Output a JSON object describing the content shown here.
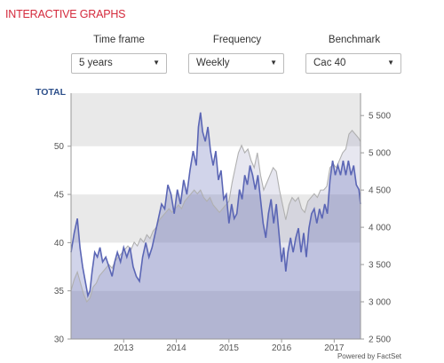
{
  "header": {
    "title": "INTERACTIVE GRAPHS"
  },
  "controls": {
    "timeframe": {
      "label": "Time frame",
      "value": "5 years",
      "arrow_icon": "caret-down-icon"
    },
    "frequency": {
      "label": "Frequency",
      "value": "Weekly",
      "arrow_icon": "caret-down-icon"
    },
    "benchmark": {
      "label": "Benchmark",
      "value": "Cac 40",
      "arrow_icon": "caret-down-icon"
    }
  },
  "chart_data": {
    "type": "area",
    "title": "",
    "ylabel": "TOTAL",
    "y_left": {
      "ticks": [
        30,
        35,
        40,
        45,
        50
      ],
      "range": [
        30,
        55.5
      ]
    },
    "y_right": {
      "ticks": [
        "2 500",
        "3 000",
        "3 500",
        "4 000",
        "4 500",
        "5 000",
        "5 500"
      ],
      "range": [
        2500,
        5800
      ]
    },
    "x_ticks": [
      "2013",
      "2014",
      "2015",
      "2016",
      "2017"
    ],
    "x_range": [
      2012.0,
      2017.5
    ],
    "grid": true,
    "series": [
      {
        "color": "#5b66b5",
        "points": [
          [
            2012.0,
            39.0
          ],
          [
            2012.06,
            41.0
          ],
          [
            2012.12,
            42.5
          ],
          [
            2012.17,
            39.5
          ],
          [
            2012.22,
            37.5
          ],
          [
            2012.27,
            36.0
          ],
          [
            2012.32,
            34.5
          ],
          [
            2012.36,
            35.0
          ],
          [
            2012.4,
            37.0
          ],
          [
            2012.45,
            39.0
          ],
          [
            2012.5,
            38.5
          ],
          [
            2012.55,
            39.5
          ],
          [
            2012.6,
            38.0
          ],
          [
            2012.66,
            38.5
          ],
          [
            2012.72,
            37.5
          ],
          [
            2012.78,
            36.5
          ],
          [
            2012.83,
            38.0
          ],
          [
            2012.88,
            39.0
          ],
          [
            2012.94,
            38.0
          ],
          [
            2013.0,
            39.5
          ],
          [
            2013.06,
            38.5
          ],
          [
            2013.12,
            39.5
          ],
          [
            2013.18,
            37.5
          ],
          [
            2013.24,
            36.5
          ],
          [
            2013.3,
            36.0
          ],
          [
            2013.36,
            38.5
          ],
          [
            2013.42,
            40.0
          ],
          [
            2013.48,
            38.5
          ],
          [
            2013.54,
            39.5
          ],
          [
            2013.6,
            41.0
          ],
          [
            2013.66,
            42.5
          ],
          [
            2013.72,
            44.0
          ],
          [
            2013.78,
            43.5
          ],
          [
            2013.84,
            46.0
          ],
          [
            2013.9,
            45.0
          ],
          [
            2013.96,
            43.0
          ],
          [
            2014.02,
            45.5
          ],
          [
            2014.08,
            44.0
          ],
          [
            2014.14,
            46.5
          ],
          [
            2014.2,
            45.0
          ],
          [
            2014.26,
            47.5
          ],
          [
            2014.32,
            49.5
          ],
          [
            2014.38,
            48.0
          ],
          [
            2014.42,
            52.0
          ],
          [
            2014.46,
            53.5
          ],
          [
            2014.5,
            51.5
          ],
          [
            2014.55,
            50.5
          ],
          [
            2014.6,
            52.0
          ],
          [
            2014.65,
            49.5
          ],
          [
            2014.7,
            48.0
          ],
          [
            2014.75,
            49.5
          ],
          [
            2014.8,
            46.5
          ],
          [
            2014.85,
            47.5
          ],
          [
            2014.9,
            44.5
          ],
          [
            2014.95,
            45.0
          ],
          [
            2015.0,
            42.0
          ],
          [
            2015.05,
            44.0
          ],
          [
            2015.1,
            42.5
          ],
          [
            2015.15,
            43.0
          ],
          [
            2015.2,
            45.5
          ],
          [
            2015.25,
            44.5
          ],
          [
            2015.3,
            47.0
          ],
          [
            2015.35,
            46.0
          ],
          [
            2015.4,
            48.0
          ],
          [
            2015.45,
            47.0
          ],
          [
            2015.5,
            45.5
          ],
          [
            2015.55,
            47.0
          ],
          [
            2015.6,
            44.5
          ],
          [
            2015.65,
            42.0
          ],
          [
            2015.7,
            40.5
          ],
          [
            2015.75,
            43.0
          ],
          [
            2015.8,
            44.5
          ],
          [
            2015.85,
            42.0
          ],
          [
            2015.9,
            44.0
          ],
          [
            2015.95,
            41.0
          ],
          [
            2016.0,
            38.0
          ],
          [
            2016.04,
            39.5
          ],
          [
            2016.08,
            37.0
          ],
          [
            2016.12,
            39.0
          ],
          [
            2016.17,
            40.5
          ],
          [
            2016.22,
            39.0
          ],
          [
            2016.27,
            40.5
          ],
          [
            2016.32,
            41.5
          ],
          [
            2016.37,
            39.0
          ],
          [
            2016.42,
            41.0
          ],
          [
            2016.47,
            38.5
          ],
          [
            2016.52,
            41.5
          ],
          [
            2016.57,
            43.0
          ],
          [
            2016.62,
            43.5
          ],
          [
            2016.67,
            42.0
          ],
          [
            2016.72,
            43.5
          ],
          [
            2016.77,
            42.5
          ],
          [
            2016.82,
            44.0
          ],
          [
            2016.87,
            43.0
          ],
          [
            2016.92,
            46.5
          ],
          [
            2016.97,
            48.5
          ],
          [
            2017.02,
            47.0
          ],
          [
            2017.07,
            48.0
          ],
          [
            2017.12,
            47.0
          ],
          [
            2017.17,
            48.5
          ],
          [
            2017.22,
            47.0
          ],
          [
            2017.27,
            48.5
          ],
          [
            2017.32,
            47.0
          ],
          [
            2017.37,
            48.0
          ],
          [
            2017.42,
            46.0
          ],
          [
            2017.47,
            45.5
          ],
          [
            2017.5,
            44.0
          ]
        ]
      },
      {
        "color": "#b0b0b0",
        "points": [
          [
            2012.0,
            3150
          ],
          [
            2012.06,
            3300
          ],
          [
            2012.12,
            3400
          ],
          [
            2012.18,
            3250
          ],
          [
            2012.24,
            3100
          ],
          [
            2012.3,
            3000
          ],
          [
            2012.36,
            3050
          ],
          [
            2012.42,
            3200
          ],
          [
            2012.48,
            3250
          ],
          [
            2012.54,
            3350
          ],
          [
            2012.6,
            3400
          ],
          [
            2012.66,
            3450
          ],
          [
            2012.72,
            3500
          ],
          [
            2012.78,
            3450
          ],
          [
            2012.84,
            3550
          ],
          [
            2012.9,
            3600
          ],
          [
            2012.96,
            3650
          ],
          [
            2013.02,
            3700
          ],
          [
            2013.08,
            3750
          ],
          [
            2013.14,
            3700
          ],
          [
            2013.2,
            3800
          ],
          [
            2013.26,
            3750
          ],
          [
            2013.32,
            3850
          ],
          [
            2013.38,
            3800
          ],
          [
            2013.44,
            3900
          ],
          [
            2013.5,
            3850
          ],
          [
            2013.56,
            3950
          ],
          [
            2013.62,
            4000
          ],
          [
            2013.68,
            4100
          ],
          [
            2013.74,
            4150
          ],
          [
            2013.8,
            4200
          ],
          [
            2013.86,
            4250
          ],
          [
            2013.92,
            4200
          ],
          [
            2013.98,
            4250
          ],
          [
            2014.04,
            4300
          ],
          [
            2014.1,
            4250
          ],
          [
            2014.16,
            4350
          ],
          [
            2014.22,
            4400
          ],
          [
            2014.28,
            4450
          ],
          [
            2014.34,
            4500
          ],
          [
            2014.4,
            4450
          ],
          [
            2014.46,
            4500
          ],
          [
            2014.52,
            4400
          ],
          [
            2014.58,
            4350
          ],
          [
            2014.64,
            4400
          ],
          [
            2014.7,
            4300
          ],
          [
            2014.76,
            4250
          ],
          [
            2014.82,
            4200
          ],
          [
            2014.88,
            4250
          ],
          [
            2014.94,
            4300
          ],
          [
            2015.0,
            4350
          ],
          [
            2015.06,
            4600
          ],
          [
            2015.12,
            4800
          ],
          [
            2015.18,
            5000
          ],
          [
            2015.24,
            5100
          ],
          [
            2015.3,
            5000
          ],
          [
            2015.36,
            5050
          ],
          [
            2015.42,
            4900
          ],
          [
            2015.48,
            4800
          ],
          [
            2015.54,
            5000
          ],
          [
            2015.6,
            4700
          ],
          [
            2015.66,
            4500
          ],
          [
            2015.72,
            4600
          ],
          [
            2015.78,
            4700
          ],
          [
            2015.84,
            4800
          ],
          [
            2015.9,
            4750
          ],
          [
            2015.96,
            4500
          ],
          [
            2016.02,
            4300
          ],
          [
            2016.08,
            4100
          ],
          [
            2016.14,
            4300
          ],
          [
            2016.2,
            4400
          ],
          [
            2016.26,
            4350
          ],
          [
            2016.32,
            4400
          ],
          [
            2016.38,
            4250
          ],
          [
            2016.44,
            4200
          ],
          [
            2016.5,
            4350
          ],
          [
            2016.56,
            4400
          ],
          [
            2016.62,
            4450
          ],
          [
            2016.68,
            4400
          ],
          [
            2016.74,
            4500
          ],
          [
            2016.8,
            4500
          ],
          [
            2016.86,
            4550
          ],
          [
            2016.92,
            4800
          ],
          [
            2016.98,
            4850
          ],
          [
            2017.04,
            4800
          ],
          [
            2017.1,
            4900
          ],
          [
            2017.16,
            5000
          ],
          [
            2017.22,
            5050
          ],
          [
            2017.28,
            5250
          ],
          [
            2017.34,
            5300
          ],
          [
            2017.4,
            5250
          ],
          [
            2017.46,
            5200
          ],
          [
            2017.5,
            5150
          ]
        ]
      }
    ]
  },
  "footer": {
    "credit": "Powered by FactSet"
  }
}
